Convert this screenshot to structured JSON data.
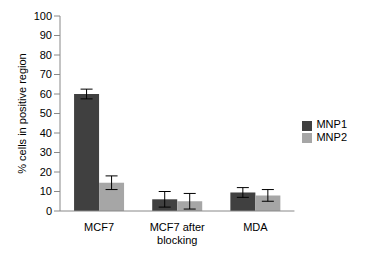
{
  "chart_data": {
    "type": "bar",
    "y_label": "% cells in positive region",
    "categories": [
      "MCF7",
      "MCF7 after blocking",
      "MDA"
    ],
    "series": [
      {
        "name": "MNP1",
        "color": "#404040",
        "values": [
          60,
          6,
          9.5
        ],
        "errors": [
          2.5,
          4,
          2.5
        ]
      },
      {
        "name": "MNP2",
        "color": "#a6a6a6",
        "values": [
          14.5,
          5,
          8
        ],
        "errors": [
          3.5,
          4,
          3
        ]
      }
    ],
    "ylim": [
      0,
      100
    ],
    "yticks": [
      0,
      10,
      20,
      30,
      40,
      50,
      60,
      70,
      80,
      90,
      100
    ],
    "grid": false,
    "legend": "right"
  }
}
